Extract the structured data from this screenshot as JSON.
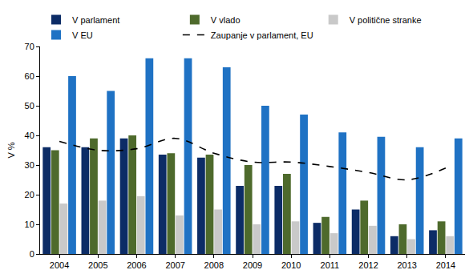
{
  "chart_data": {
    "type": "bar",
    "y_label": "V %",
    "categories": [
      "2004",
      "2005",
      "2006",
      "2007",
      "2008",
      "2009",
      "2010",
      "2011",
      "2012",
      "2013",
      "2014"
    ],
    "series": [
      {
        "name": "V parlament",
        "color": "#0c2c66",
        "values": [
          36,
          36,
          39,
          33.5,
          32.5,
          23,
          23,
          10.5,
          15,
          6,
          8
        ]
      },
      {
        "name": "V vlado",
        "color": "#4e6a2c",
        "values": [
          35,
          39,
          40,
          34,
          33.5,
          30,
          27,
          12.5,
          18,
          10,
          11
        ]
      },
      {
        "name": "V politične stranke",
        "color": "#c9c9c9",
        "values": [
          17,
          18,
          19.5,
          13,
          15,
          10,
          11,
          7,
          9.5,
          5,
          6
        ]
      },
      {
        "name": "V EU",
        "color": "#1f72c4",
        "values": [
          60,
          55,
          66,
          66,
          63,
          50,
          47,
          41,
          39.5,
          36,
          39
        ]
      },
      {
        "name": "Zaupanje v parlament, EU",
        "color": "#000000",
        "type": "line",
        "line_style": "dashed",
        "values": [
          38,
          35,
          35.5,
          39,
          34,
          31,
          31,
          29.5,
          27.5,
          25,
          29
        ]
      }
    ],
    "ylim": [
      0,
      70
    ],
    "yticks": [
      0,
      10,
      20,
      30,
      40,
      50,
      60,
      70
    ],
    "grid": false,
    "legend": "top"
  }
}
